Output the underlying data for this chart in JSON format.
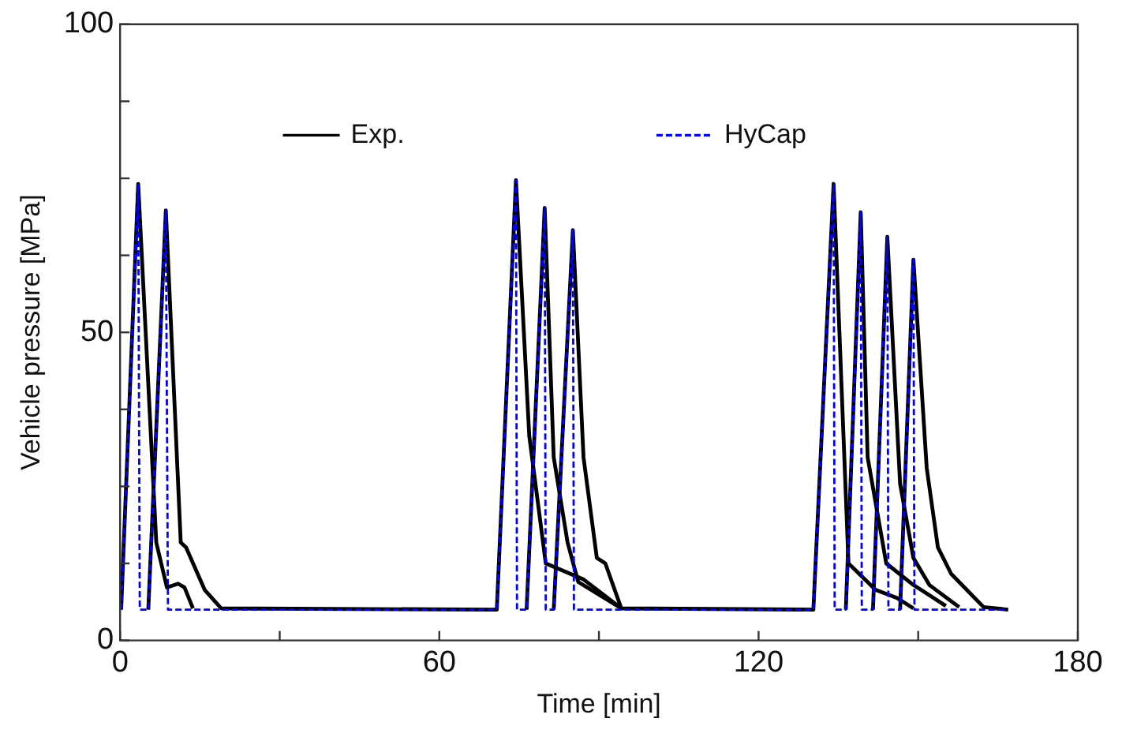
{
  "chart_data": {
    "type": "line",
    "xlabel": "Time [min]",
    "ylabel": "Vehicle pressure [MPa]",
    "xlim": [
      0,
      180
    ],
    "xticks": [
      0,
      {
        "value": 30,
        "label": null
      },
      60,
      {
        "value": 90,
        "label": null
      },
      120,
      {
        "value": 150,
        "label": null
      },
      180
    ],
    "ylim": [
      0,
      100
    ],
    "yticks": [
      0,
      {
        "value": 12.5,
        "label": null
      },
      {
        "value": 25,
        "label": null
      },
      {
        "value": 37.5,
        "label": null
      },
      50,
      {
        "value": 62.5,
        "label": null
      },
      {
        "value": 75,
        "label": null
      },
      {
        "value": 87.5,
        "label": null
      },
      100
    ],
    "legend": "top",
    "series": [
      {
        "name": "Exp.",
        "color": "#000000",
        "line_style": "solid",
        "x": [
          0.2,
          3.4,
          6.8,
          8.8,
          10.9,
          12.1,
          13.7
        ],
        "values": [
          5,
          74.1,
          15.9,
          8.6,
          9.2,
          8.6,
          5.2
        ]
      },
      {
        "color": "#000000",
        "line_style": "solid",
        "x": [
          5.3,
          8.6,
          11.4,
          12.4,
          15.9,
          19.0,
          70.8,
          74.4,
          76.9,
          80.0,
          87.1,
          94.2
        ],
        "values": [
          5,
          69.8,
          15.9,
          15.1,
          8.2,
          5.2,
          5,
          74.7,
          33.2,
          12.5,
          9.9,
          5.2
        ]
      },
      {
        "color": "#000000",
        "line_style": "solid",
        "x": [
          76.4,
          79.8,
          81.5,
          84.1,
          86.1,
          94.2
        ],
        "values": [
          5,
          70.2,
          29.7,
          15.9,
          9.5,
          5.2
        ]
      },
      {
        "color": "#000000",
        "line_style": "solid",
        "x": [
          81.5,
          85.1,
          87.1,
          89.6,
          91.2,
          94.2,
          130.3,
          134.1,
          136.9,
          142.0,
          146.0,
          149.1
        ],
        "values": [
          5,
          66.6,
          29.7,
          13.4,
          12.5,
          5.2,
          5,
          74.1,
          12.5,
          8.2,
          6.9,
          5.2
        ]
      },
      {
        "color": "#000000",
        "line_style": "solid",
        "x": [
          136.4,
          139.2,
          140.5,
          144.0,
          149.1,
          155.2
        ],
        "values": [
          5,
          69.5,
          29.7,
          12.5,
          9.0,
          5.6
        ]
      },
      {
        "color": "#000000",
        "line_style": "solid",
        "x": [
          141.5,
          144.2,
          146.6,
          149.1,
          152.1,
          157.7
        ],
        "values": [
          5,
          65.5,
          25.4,
          13.4,
          9.0,
          5.4
        ]
      },
      {
        "color": "#000000",
        "line_style": "solid",
        "x": [
          146.6,
          149.1,
          151.6,
          153.7,
          156.2,
          162.3,
          166.9
        ],
        "values": [
          5,
          61.8,
          28,
          15.1,
          10.8,
          5.4,
          5
        ]
      },
      {
        "name": "HyCap",
        "color": "#0000ff",
        "line_style": "dashed",
        "x": [
          0.2,
          3.4,
          3.7,
          5.3,
          8.6,
          9.0,
          70.8,
          74.4,
          74.6,
          76.4,
          79.8,
          80.0,
          81.5,
          85.1,
          85.3,
          130.3,
          134.1,
          134.3,
          136.4,
          139.2,
          139.4,
          141.5,
          144.2,
          144.4,
          146.6,
          149.1,
          149.3,
          166.9
        ],
        "values": [
          5,
          74.1,
          5,
          5,
          69.8,
          5,
          5,
          74.7,
          5,
          5,
          70.2,
          5,
          5,
          66.6,
          5,
          5,
          74.1,
          5,
          5,
          69.5,
          5,
          5,
          65.5,
          5,
          5,
          61.8,
          5,
          5
        ]
      }
    ]
  }
}
